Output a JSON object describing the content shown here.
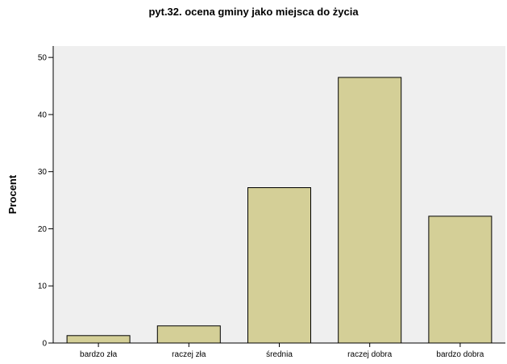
{
  "chart_data": {
    "type": "bar",
    "title": "pyt.32. ocena gminy jako miejsca do życia",
    "xlabel": "",
    "ylabel": "Procent",
    "categories": [
      "bardzo zła",
      "raczej zła",
      "średnia",
      "raczej dobra",
      "bardzo dobra"
    ],
    "values": [
      1.3,
      3.0,
      27.2,
      46.5,
      22.2
    ],
    "ylim": [
      0,
      52
    ],
    "yticks": [
      0,
      10,
      20,
      30,
      40,
      50
    ],
    "grid": false,
    "legend": "none",
    "colors": {
      "plot_background": "#efefef",
      "bar_fill": "#d4cf97",
      "bar_stroke": "#000000"
    }
  }
}
